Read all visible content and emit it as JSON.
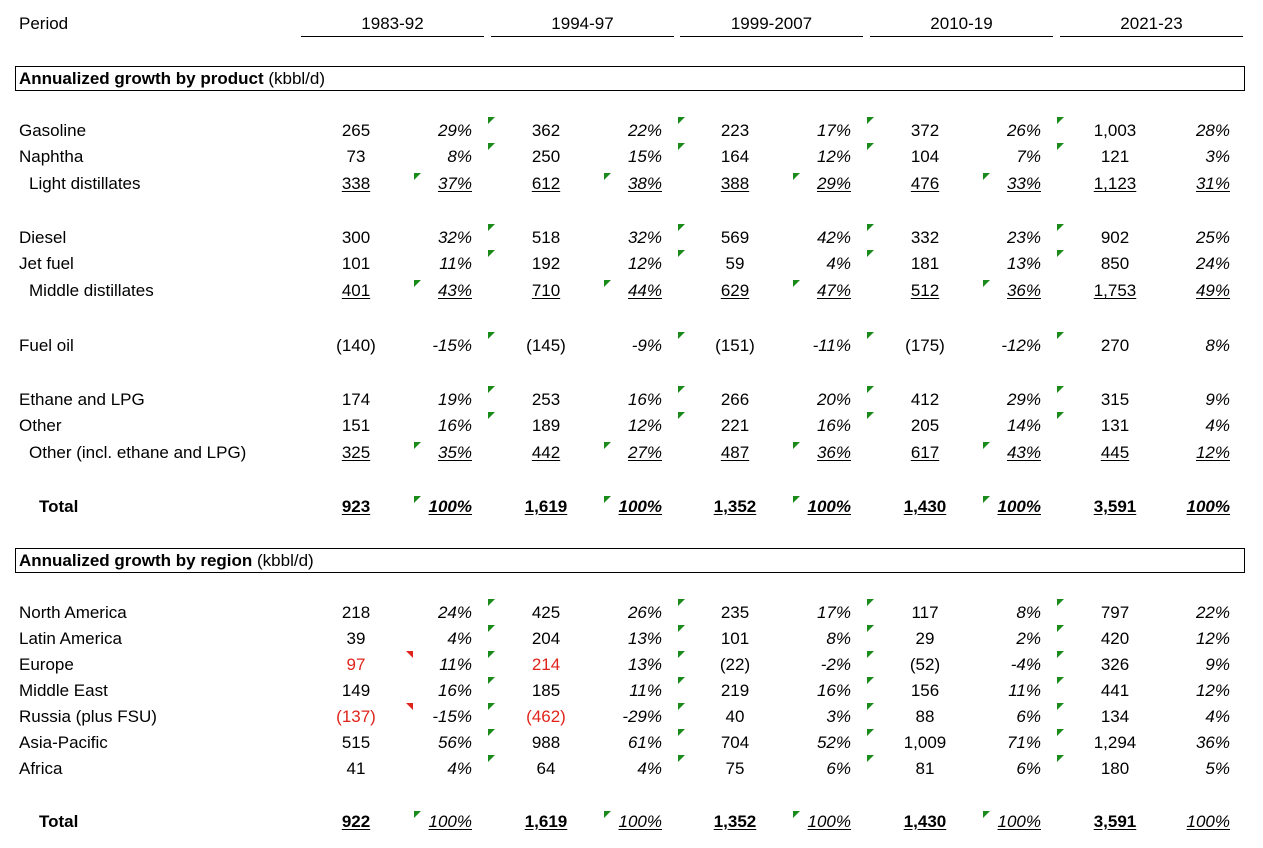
{
  "header": {
    "period_label": "Period",
    "periods": [
      "1983-92",
      "1994-97",
      "1999-2007",
      "2010-19",
      "2021-23"
    ]
  },
  "product_section": {
    "title_bold": "Annualized growth by product",
    "title_unit": " (kbbl/d)",
    "rows": [
      {
        "label": "Gasoline",
        "values": [
          "265",
          "362",
          "223",
          "372",
          "1,003"
        ],
        "pcts": [
          "29%",
          "22%",
          "17%",
          "26%",
          "28%"
        ]
      },
      {
        "label": "Naphtha",
        "values": [
          "73",
          "250",
          "164",
          "104",
          "121"
        ],
        "pcts": [
          "8%",
          "15%",
          "12%",
          "7%",
          "3%"
        ]
      },
      {
        "label": "Light distillates",
        "values": [
          "338",
          "612",
          "388",
          "476",
          "1,123"
        ],
        "pcts": [
          "37%",
          "38%",
          "29%",
          "33%",
          "31%"
        ]
      },
      {
        "label": "Diesel",
        "values": [
          "300",
          "518",
          "569",
          "332",
          "902"
        ],
        "pcts": [
          "32%",
          "32%",
          "42%",
          "23%",
          "25%"
        ]
      },
      {
        "label": "Jet fuel",
        "values": [
          "101",
          "192",
          "59",
          "181",
          "850"
        ],
        "pcts": [
          "11%",
          "12%",
          "4%",
          "13%",
          "24%"
        ]
      },
      {
        "label": "Middle distillates",
        "values": [
          "401",
          "710",
          "629",
          "512",
          "1,753"
        ],
        "pcts": [
          "43%",
          "44%",
          "47%",
          "36%",
          "49%"
        ]
      },
      {
        "label": "Fuel oil",
        "values": [
          "(140)",
          "(145)",
          "(151)",
          "(175)",
          "270"
        ],
        "pcts": [
          "-15%",
          "-9%",
          "-11%",
          "-12%",
          "8%"
        ]
      },
      {
        "label": "Ethane and LPG",
        "values": [
          "174",
          "253",
          "266",
          "412",
          "315"
        ],
        "pcts": [
          "19%",
          "16%",
          "20%",
          "29%",
          "9%"
        ]
      },
      {
        "label": "Other",
        "values": [
          "151",
          "189",
          "221",
          "205",
          "131"
        ],
        "pcts": [
          "16%",
          "12%",
          "16%",
          "14%",
          "4%"
        ]
      },
      {
        "label": "Other (incl. ethane and LPG)",
        "values": [
          "325",
          "442",
          "487",
          "617",
          "445"
        ],
        "pcts": [
          "35%",
          "27%",
          "36%",
          "43%",
          "12%"
        ]
      },
      {
        "label": "Total",
        "values": [
          "923",
          "1,619",
          "1,352",
          "1,430",
          "3,591"
        ],
        "pcts": [
          "100%",
          "100%",
          "100%",
          "100%",
          "100%"
        ]
      }
    ]
  },
  "region_section": {
    "title_bold": "Annualized growth by region",
    "title_unit": " (kbbl/d)",
    "rows": [
      {
        "label": "North America",
        "values": [
          "218",
          "425",
          "235",
          "117",
          "797"
        ],
        "pcts": [
          "24%",
          "26%",
          "17%",
          "8%",
          "22%"
        ]
      },
      {
        "label": "Latin America",
        "values": [
          "39",
          "204",
          "101",
          "29",
          "420"
        ],
        "pcts": [
          "4%",
          "13%",
          "8%",
          "2%",
          "12%"
        ]
      },
      {
        "label": "Europe",
        "values": [
          "97",
          "214",
          "(22)",
          "(52)",
          "326"
        ],
        "pcts": [
          "11%",
          "13%",
          "-2%",
          "-4%",
          "9%"
        ]
      },
      {
        "label": "Middle East",
        "values": [
          "149",
          "185",
          "219",
          "156",
          "441"
        ],
        "pcts": [
          "16%",
          "11%",
          "16%",
          "11%",
          "12%"
        ]
      },
      {
        "label": "Russia (plus FSU)",
        "values": [
          "(137)",
          "(462)",
          "40",
          "88",
          "134"
        ],
        "pcts": [
          "-15%",
          "-29%",
          "3%",
          "6%",
          "4%"
        ]
      },
      {
        "label": "Asia-Pacific",
        "values": [
          "515",
          "988",
          "704",
          "1,009",
          "1,294"
        ],
        "pcts": [
          "56%",
          "61%",
          "52%",
          "71%",
          "36%"
        ]
      },
      {
        "label": "Africa",
        "values": [
          "41",
          "64",
          "75",
          "81",
          "180"
        ],
        "pcts": [
          "4%",
          "4%",
          "6%",
          "6%",
          "5%"
        ]
      },
      {
        "label": "Total",
        "values": [
          "922",
          "1,619",
          "1,352",
          "1,430",
          "3,591"
        ],
        "pcts": [
          "100%",
          "100%",
          "100%",
          "100%",
          "100%"
        ]
      }
    ]
  },
  "colors": {
    "negative_highlight": "#e0241b",
    "comment_marker_green": "#1a8a1a",
    "comment_marker_red": "#e0241b"
  }
}
